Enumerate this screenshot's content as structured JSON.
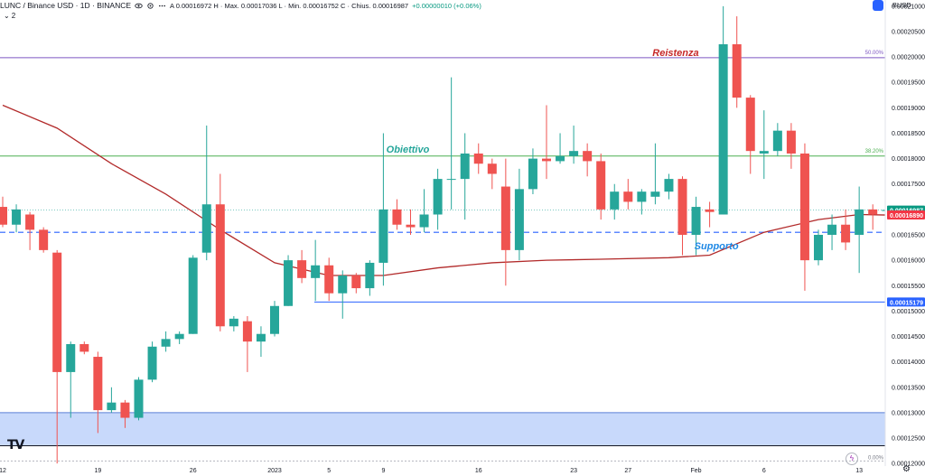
{
  "header": {
    "symbol": "LUNC / Binance USD · 1D · BINANCE",
    "ohlc": "A 0.00016972  H · Max. 0.00017036  L · Min. 0.00016752  C · Chius. 0.00016987",
    "change": "+0.00000010 (+0.06%)",
    "sub_count": "2",
    "unit": "BUSD"
  },
  "colors": {
    "up": "#26a69a",
    "down": "#ef5350",
    "ma": "#b22a2a",
    "support_zone": "#c8d9fb",
    "resistance_line": "#7e57c2",
    "fib_line": "#4caf50",
    "dashed_support": "#2962ff",
    "price_label_green": "#089981",
    "price_label_red": "#f23645",
    "price_label_blue": "#2962ff"
  },
  "chart_data": {
    "type": "candlestick",
    "ylim": [
      0.0001195,
      0.0002105
    ],
    "y_ticks": [
      "0.00021000",
      "0.00020500",
      "0.00020000",
      "0.00019500",
      "0.00019000",
      "0.00018500",
      "0.00018000",
      "0.00017500",
      "0.00017000",
      "0.00016500",
      "0.00016000",
      "0.00015500",
      "0.00015000",
      "0.00014500",
      "0.00014000",
      "0.00013500",
      "0.00013000",
      "0.00012500",
      "0.00012000"
    ],
    "x_ticks": [
      {
        "label": "12",
        "index": 0
      },
      {
        "label": "19",
        "index": 7
      },
      {
        "label": "26",
        "index": 14
      },
      {
        "label": "2023",
        "index": 20
      },
      {
        "label": "5",
        "index": 24
      },
      {
        "label": "9",
        "index": 28
      },
      {
        "label": "16",
        "index": 35
      },
      {
        "label": "23",
        "index": 42
      },
      {
        "label": "27",
        "index": 46
      },
      {
        "label": "Feb",
        "index": 51
      },
      {
        "label": "6",
        "index": 56
      },
      {
        "label": "13",
        "index": 63
      }
    ],
    "candles": [
      {
        "o": 0.0001705,
        "h": 0.0001725,
        "l": 0.0001665,
        "c": 0.000167
      },
      {
        "o": 0.000167,
        "h": 0.000171,
        "l": 0.0001655,
        "c": 0.00017
      },
      {
        "o": 0.000169,
        "h": 0.0001695,
        "l": 0.000162,
        "c": 0.000166
      },
      {
        "o": 0.000166,
        "h": 0.0001665,
        "l": 0.0001615,
        "c": 0.000162
      },
      {
        "o": 0.0001615,
        "h": 0.000162,
        "l": 0.00012,
        "c": 0.000138
      },
      {
        "o": 0.000138,
        "h": 0.000144,
        "l": 0.000129,
        "c": 0.0001435
      },
      {
        "o": 0.0001435,
        "h": 0.000144,
        "l": 0.0001415,
        "c": 0.000142
      },
      {
        "o": 0.000141,
        "h": 0.000142,
        "l": 0.000126,
        "c": 0.0001305
      },
      {
        "o": 0.0001305,
        "h": 0.000135,
        "l": 0.00013,
        "c": 0.000132
      },
      {
        "o": 0.000132,
        "h": 0.0001325,
        "l": 0.000127,
        "c": 0.000129
      },
      {
        "o": 0.000129,
        "h": 0.000137,
        "l": 0.0001285,
        "c": 0.0001365
      },
      {
        "o": 0.0001365,
        "h": 0.000144,
        "l": 0.000136,
        "c": 0.000143
      },
      {
        "o": 0.000143,
        "h": 0.000146,
        "l": 0.000142,
        "c": 0.0001445
      },
      {
        "o": 0.0001445,
        "h": 0.000146,
        "l": 0.0001435,
        "c": 0.0001455
      },
      {
        "o": 0.0001455,
        "h": 0.000161,
        "l": 0.0001455,
        "c": 0.0001605
      },
      {
        "o": 0.0001615,
        "h": 0.0001865,
        "l": 0.00016,
        "c": 0.000171
      },
      {
        "o": 0.000171,
        "h": 0.000177,
        "l": 0.000146,
        "c": 0.000147
      },
      {
        "o": 0.000147,
        "h": 0.000149,
        "l": 0.000146,
        "c": 0.0001485
      },
      {
        "o": 0.000148,
        "h": 0.000149,
        "l": 0.000138,
        "c": 0.000144
      },
      {
        "o": 0.000144,
        "h": 0.000147,
        "l": 0.000141,
        "c": 0.0001455
      },
      {
        "o": 0.0001455,
        "h": 0.000152,
        "l": 0.000145,
        "c": 0.000151
      },
      {
        "o": 0.000151,
        "h": 0.000161,
        "l": 0.000151,
        "c": 0.00016
      },
      {
        "o": 0.00016,
        "h": 0.000162,
        "l": 0.0001555,
        "c": 0.0001565
      },
      {
        "o": 0.0001565,
        "h": 0.000164,
        "l": 0.000152,
        "c": 0.000159
      },
      {
        "o": 0.000159,
        "h": 0.0001605,
        "l": 0.000152,
        "c": 0.0001535
      },
      {
        "o": 0.0001535,
        "h": 0.000158,
        "l": 0.0001485,
        "c": 0.000157
      },
      {
        "o": 0.000157,
        "h": 0.0001575,
        "l": 0.0001535,
        "c": 0.0001545
      },
      {
        "o": 0.0001545,
        "h": 0.00016,
        "l": 0.000153,
        "c": 0.0001595
      },
      {
        "o": 0.0001595,
        "h": 0.000185,
        "l": 0.000155,
        "c": 0.00017
      },
      {
        "o": 0.00017,
        "h": 0.000172,
        "l": 0.000166,
        "c": 0.000167
      },
      {
        "o": 0.000167,
        "h": 0.00017,
        "l": 0.000165,
        "c": 0.0001665
      },
      {
        "o": 0.0001665,
        "h": 0.000174,
        "l": 0.0001655,
        "c": 0.000169
      },
      {
        "o": 0.000169,
        "h": 0.000178,
        "l": 0.000166,
        "c": 0.000176
      },
      {
        "o": 0.000176,
        "h": 0.000196,
        "l": 0.00017,
        "c": 0.000176
      },
      {
        "o": 0.000176,
        "h": 0.000185,
        "l": 0.000168,
        "c": 0.000181
      },
      {
        "o": 0.000181,
        "h": 0.000183,
        "l": 0.000177,
        "c": 0.000179
      },
      {
        "o": 0.000179,
        "h": 0.00018,
        "l": 0.000174,
        "c": 0.000177
      },
      {
        "o": 0.0001745,
        "h": 0.00018,
        "l": 0.000155,
        "c": 0.000162
      },
      {
        "o": 0.000162,
        "h": 0.000178,
        "l": 0.00016,
        "c": 0.000174
      },
      {
        "o": 0.000174,
        "h": 0.000182,
        "l": 0.000173,
        "c": 0.00018
      },
      {
        "o": 0.00018,
        "h": 0.0001905,
        "l": 0.000176,
        "c": 0.0001795
      },
      {
        "o": 0.0001795,
        "h": 0.000185,
        "l": 0.000179,
        "c": 0.0001805
      },
      {
        "o": 0.0001805,
        "h": 0.0001865,
        "l": 0.000179,
        "c": 0.0001815
      },
      {
        "o": 0.0001815,
        "h": 0.000183,
        "l": 0.0001765,
        "c": 0.0001795
      },
      {
        "o": 0.0001795,
        "h": 0.000181,
        "l": 0.000168,
        "c": 0.00017
      },
      {
        "o": 0.00017,
        "h": 0.000175,
        "l": 0.000168,
        "c": 0.0001735
      },
      {
        "o": 0.0001735,
        "h": 0.000176,
        "l": 0.00017,
        "c": 0.0001715
      },
      {
        "o": 0.0001715,
        "h": 0.000174,
        "l": 0.000169,
        "c": 0.0001735
      },
      {
        "o": 0.0001725,
        "h": 0.000183,
        "l": 0.000171,
        "c": 0.0001735
      },
      {
        "o": 0.0001735,
        "h": 0.000177,
        "l": 0.000172,
        "c": 0.000176
      },
      {
        "o": 0.000176,
        "h": 0.0001765,
        "l": 0.000161,
        "c": 0.000165
      },
      {
        "o": 0.000165,
        "h": 0.0001725,
        "l": 0.000161,
        "c": 0.0001705
      },
      {
        "o": 0.00017,
        "h": 0.0001715,
        "l": 0.0001665,
        "c": 0.0001695
      },
      {
        "o": 0.000169,
        "h": 0.00021,
        "l": 0.000169,
        "c": 0.0002025
      },
      {
        "o": 0.0002025,
        "h": 0.000208,
        "l": 0.00019,
        "c": 0.000192
      },
      {
        "o": 0.000192,
        "h": 0.0001925,
        "l": 0.000177,
        "c": 0.0001815
      },
      {
        "o": 0.000181,
        "h": 0.0001895,
        "l": 0.000176,
        "c": 0.0001815
      },
      {
        "o": 0.0001815,
        "h": 0.000187,
        "l": 0.0001805,
        "c": 0.0001855
      },
      {
        "o": 0.0001855,
        "h": 0.000187,
        "l": 0.000178,
        "c": 0.000181
      },
      {
        "o": 0.000181,
        "h": 0.000183,
        "l": 0.000154,
        "c": 0.00016
      },
      {
        "o": 0.00016,
        "h": 0.000166,
        "l": 0.000159,
        "c": 0.000165
      },
      {
        "o": 0.000165,
        "h": 0.000169,
        "l": 0.000162,
        "c": 0.000167
      },
      {
        "o": 0.000167,
        "h": 0.00017,
        "l": 0.000162,
        "c": 0.0001635
      },
      {
        "o": 0.000165,
        "h": 0.0001745,
        "l": 0.0001575,
        "c": 0.00017
      },
      {
        "o": 0.00017,
        "h": 0.000171,
        "l": 0.000166,
        "c": 0.000169
      },
      {
        "o": 0.0001697,
        "h": 0.0001704,
        "l": 0.0001675,
        "c": 0.0001699
      }
    ],
    "ma_points": [
      {
        "i": 0,
        "v": 0.0001905
      },
      {
        "i": 4,
        "v": 0.000186
      },
      {
        "i": 8,
        "v": 0.000179
      },
      {
        "i": 12,
        "v": 0.000173
      },
      {
        "i": 16,
        "v": 0.000166
      },
      {
        "i": 20,
        "v": 0.0001595
      },
      {
        "i": 24,
        "v": 0.000157
      },
      {
        "i": 28,
        "v": 0.000157
      },
      {
        "i": 32,
        "v": 0.0001585
      },
      {
        "i": 36,
        "v": 0.0001595
      },
      {
        "i": 40,
        "v": 0.00016
      },
      {
        "i": 44,
        "v": 0.0001602
      },
      {
        "i": 49,
        "v": 0.0001605
      },
      {
        "i": 52,
        "v": 0.000161
      },
      {
        "i": 56,
        "v": 0.0001655
      },
      {
        "i": 60,
        "v": 0.000168
      },
      {
        "i": 63,
        "v": 0.000169
      },
      {
        "i": 65,
        "v": 0.0001689
      }
    ],
    "levels": {
      "resistance": {
        "value": 0.00019985,
        "label": "50.00%"
      },
      "fib_382": {
        "value": 0.0001805,
        "label": "38.20%"
      },
      "dashed_support": {
        "value": 0.0001655
      },
      "price_line": {
        "value": 0.00016987
      },
      "support_line": {
        "value": 0.00015179
      },
      "zone_top": 0.00013,
      "zone_bottom": 0.0001235,
      "fib_0": {
        "value": 0.0001205,
        "label": "0.00%"
      }
    },
    "annotations": [
      {
        "text": "Reistenza",
        "x_index": 49.5,
        "y": 0.0002002,
        "color": "#c62828"
      },
      {
        "text": "Obiettivo",
        "x_index": 29.8,
        "y": 0.0001812,
        "color": "#26a69a"
      },
      {
        "text": "Supporto",
        "x_index": 52.5,
        "y": 0.0001622,
        "color": "#1e88e5"
      }
    ],
    "price_labels": [
      {
        "text": "0.00016987",
        "value": 0.00016987,
        "color": "#089981"
      },
      {
        "text": "0.00016890",
        "value": 0.0001689,
        "color": "#f23645"
      },
      {
        "text": "0.00015179",
        "value": 0.00015179,
        "color": "#2962ff"
      }
    ]
  }
}
